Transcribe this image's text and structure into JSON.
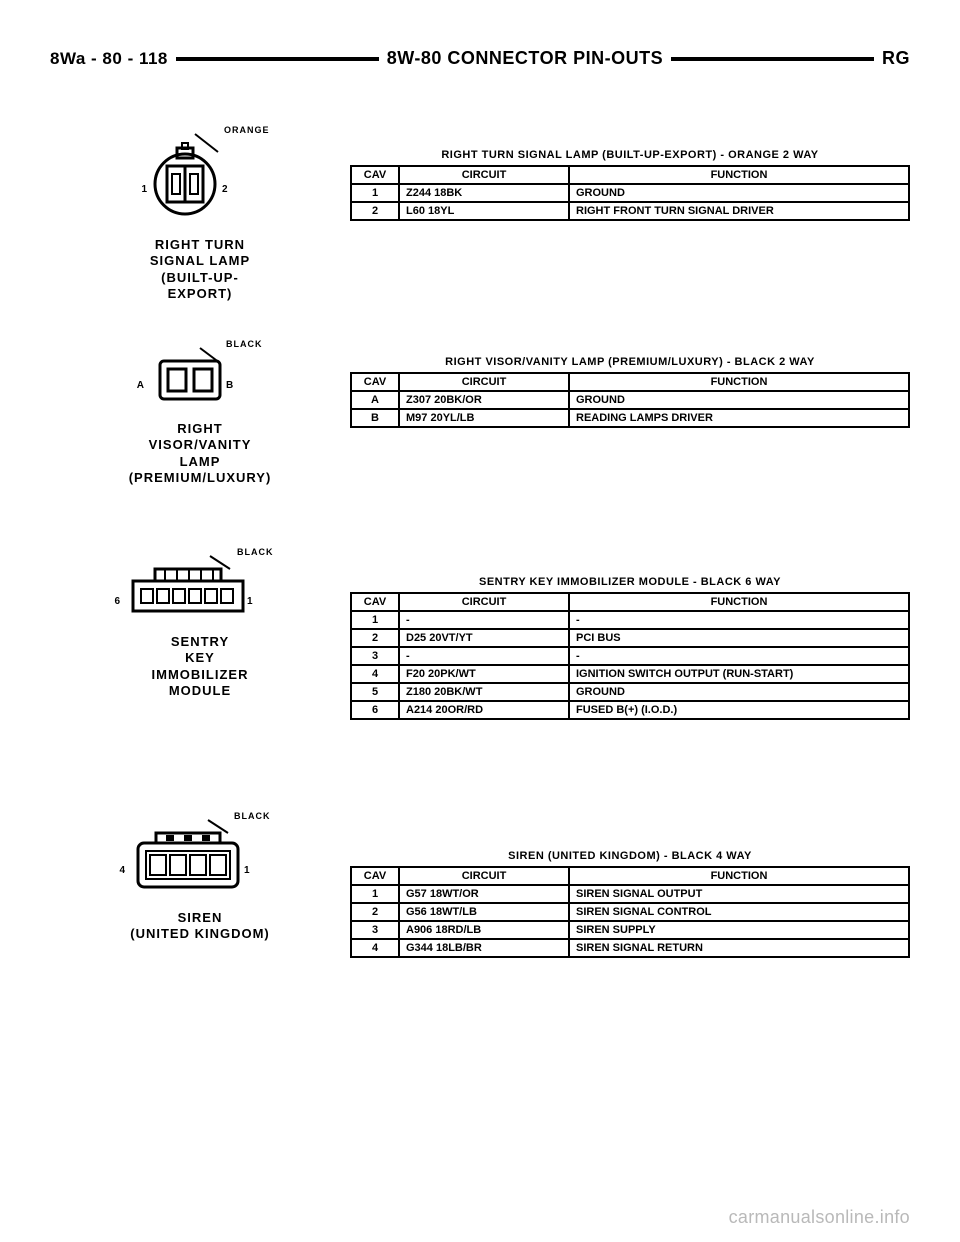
{
  "header": {
    "left": "8Wa - 80 - 118",
    "mid": "8W-80 CONNECTOR PIN-OUTS",
    "right": "RG"
  },
  "watermark": "carmanualsonline.info",
  "columns": {
    "cav": "CAV",
    "circuit": "CIRCUIT",
    "function": "FUNCTION"
  },
  "connectors": [
    {
      "color_tag": "ORANGE",
      "label_lines": [
        "RIGHT TURN",
        "SIGNAL LAMP",
        "(BUILT-UP-",
        "EXPORT)"
      ],
      "svg": "turnlamp",
      "pin_left": "1",
      "pin_right": "2",
      "table_title": "RIGHT TURN SIGNAL LAMP (BUILT-UP-EXPORT) - ORANGE 2 WAY",
      "rows": [
        {
          "cav": "1",
          "circuit": "Z244 18BK",
          "func": "GROUND"
        },
        {
          "cav": "2",
          "circuit": "L60 18YL",
          "func": "RIGHT FRONT TURN SIGNAL DRIVER"
        }
      ]
    },
    {
      "color_tag": "BLACK",
      "label_lines": [
        "RIGHT",
        "VISOR/VANITY",
        "LAMP",
        "(PREMIUM/LUXURY)"
      ],
      "svg": "visor",
      "pin_left": "A",
      "pin_right": "B",
      "table_title": "RIGHT VISOR/VANITY LAMP (PREMIUM/LUXURY) - BLACK 2 WAY",
      "rows": [
        {
          "cav": "A",
          "circuit": "Z307 20BK/OR",
          "func": "GROUND"
        },
        {
          "cav": "B",
          "circuit": "M97 20YL/LB",
          "func": "READING LAMPS DRIVER"
        }
      ]
    },
    {
      "color_tag": "BLACK",
      "label_lines": [
        "SENTRY",
        "KEY",
        "IMMOBILIZER",
        "MODULE"
      ],
      "svg": "skim",
      "pin_left": "6",
      "pin_right": "1",
      "table_title": "SENTRY KEY IMMOBILIZER MODULE - BLACK 6 WAY",
      "rows": [
        {
          "cav": "1",
          "circuit": "-",
          "func": "-"
        },
        {
          "cav": "2",
          "circuit": "D25 20VT/YT",
          "func": "PCI BUS"
        },
        {
          "cav": "3",
          "circuit": "-",
          "func": "-"
        },
        {
          "cav": "4",
          "circuit": "F20 20PK/WT",
          "func": "IGNITION SWITCH OUTPUT (RUN-START)"
        },
        {
          "cav": "5",
          "circuit": "Z180 20BK/WT",
          "func": "GROUND"
        },
        {
          "cav": "6",
          "circuit": "A214 20OR/RD",
          "func": "FUSED B(+) (I.O.D.)"
        }
      ]
    },
    {
      "color_tag": "BLACK",
      "label_lines": [
        "SIREN",
        "(UNITED KINGDOM)"
      ],
      "svg": "siren",
      "pin_left": "4",
      "pin_right": "1",
      "table_title": "SIREN (UNITED KINGDOM) - BLACK 4 WAY",
      "rows": [
        {
          "cav": "1",
          "circuit": "G57 18WT/OR",
          "func": "SIREN SIGNAL OUTPUT"
        },
        {
          "cav": "2",
          "circuit": "G56 18WT/LB",
          "func": "SIREN SIGNAL CONTROL"
        },
        {
          "cav": "3",
          "circuit": "A906 18RD/LB",
          "func": "SIREN SUPPLY"
        },
        {
          "cav": "4",
          "circuit": "G344 18LB/BR",
          "func": "SIREN SIGNAL RETURN"
        }
      ]
    }
  ]
}
